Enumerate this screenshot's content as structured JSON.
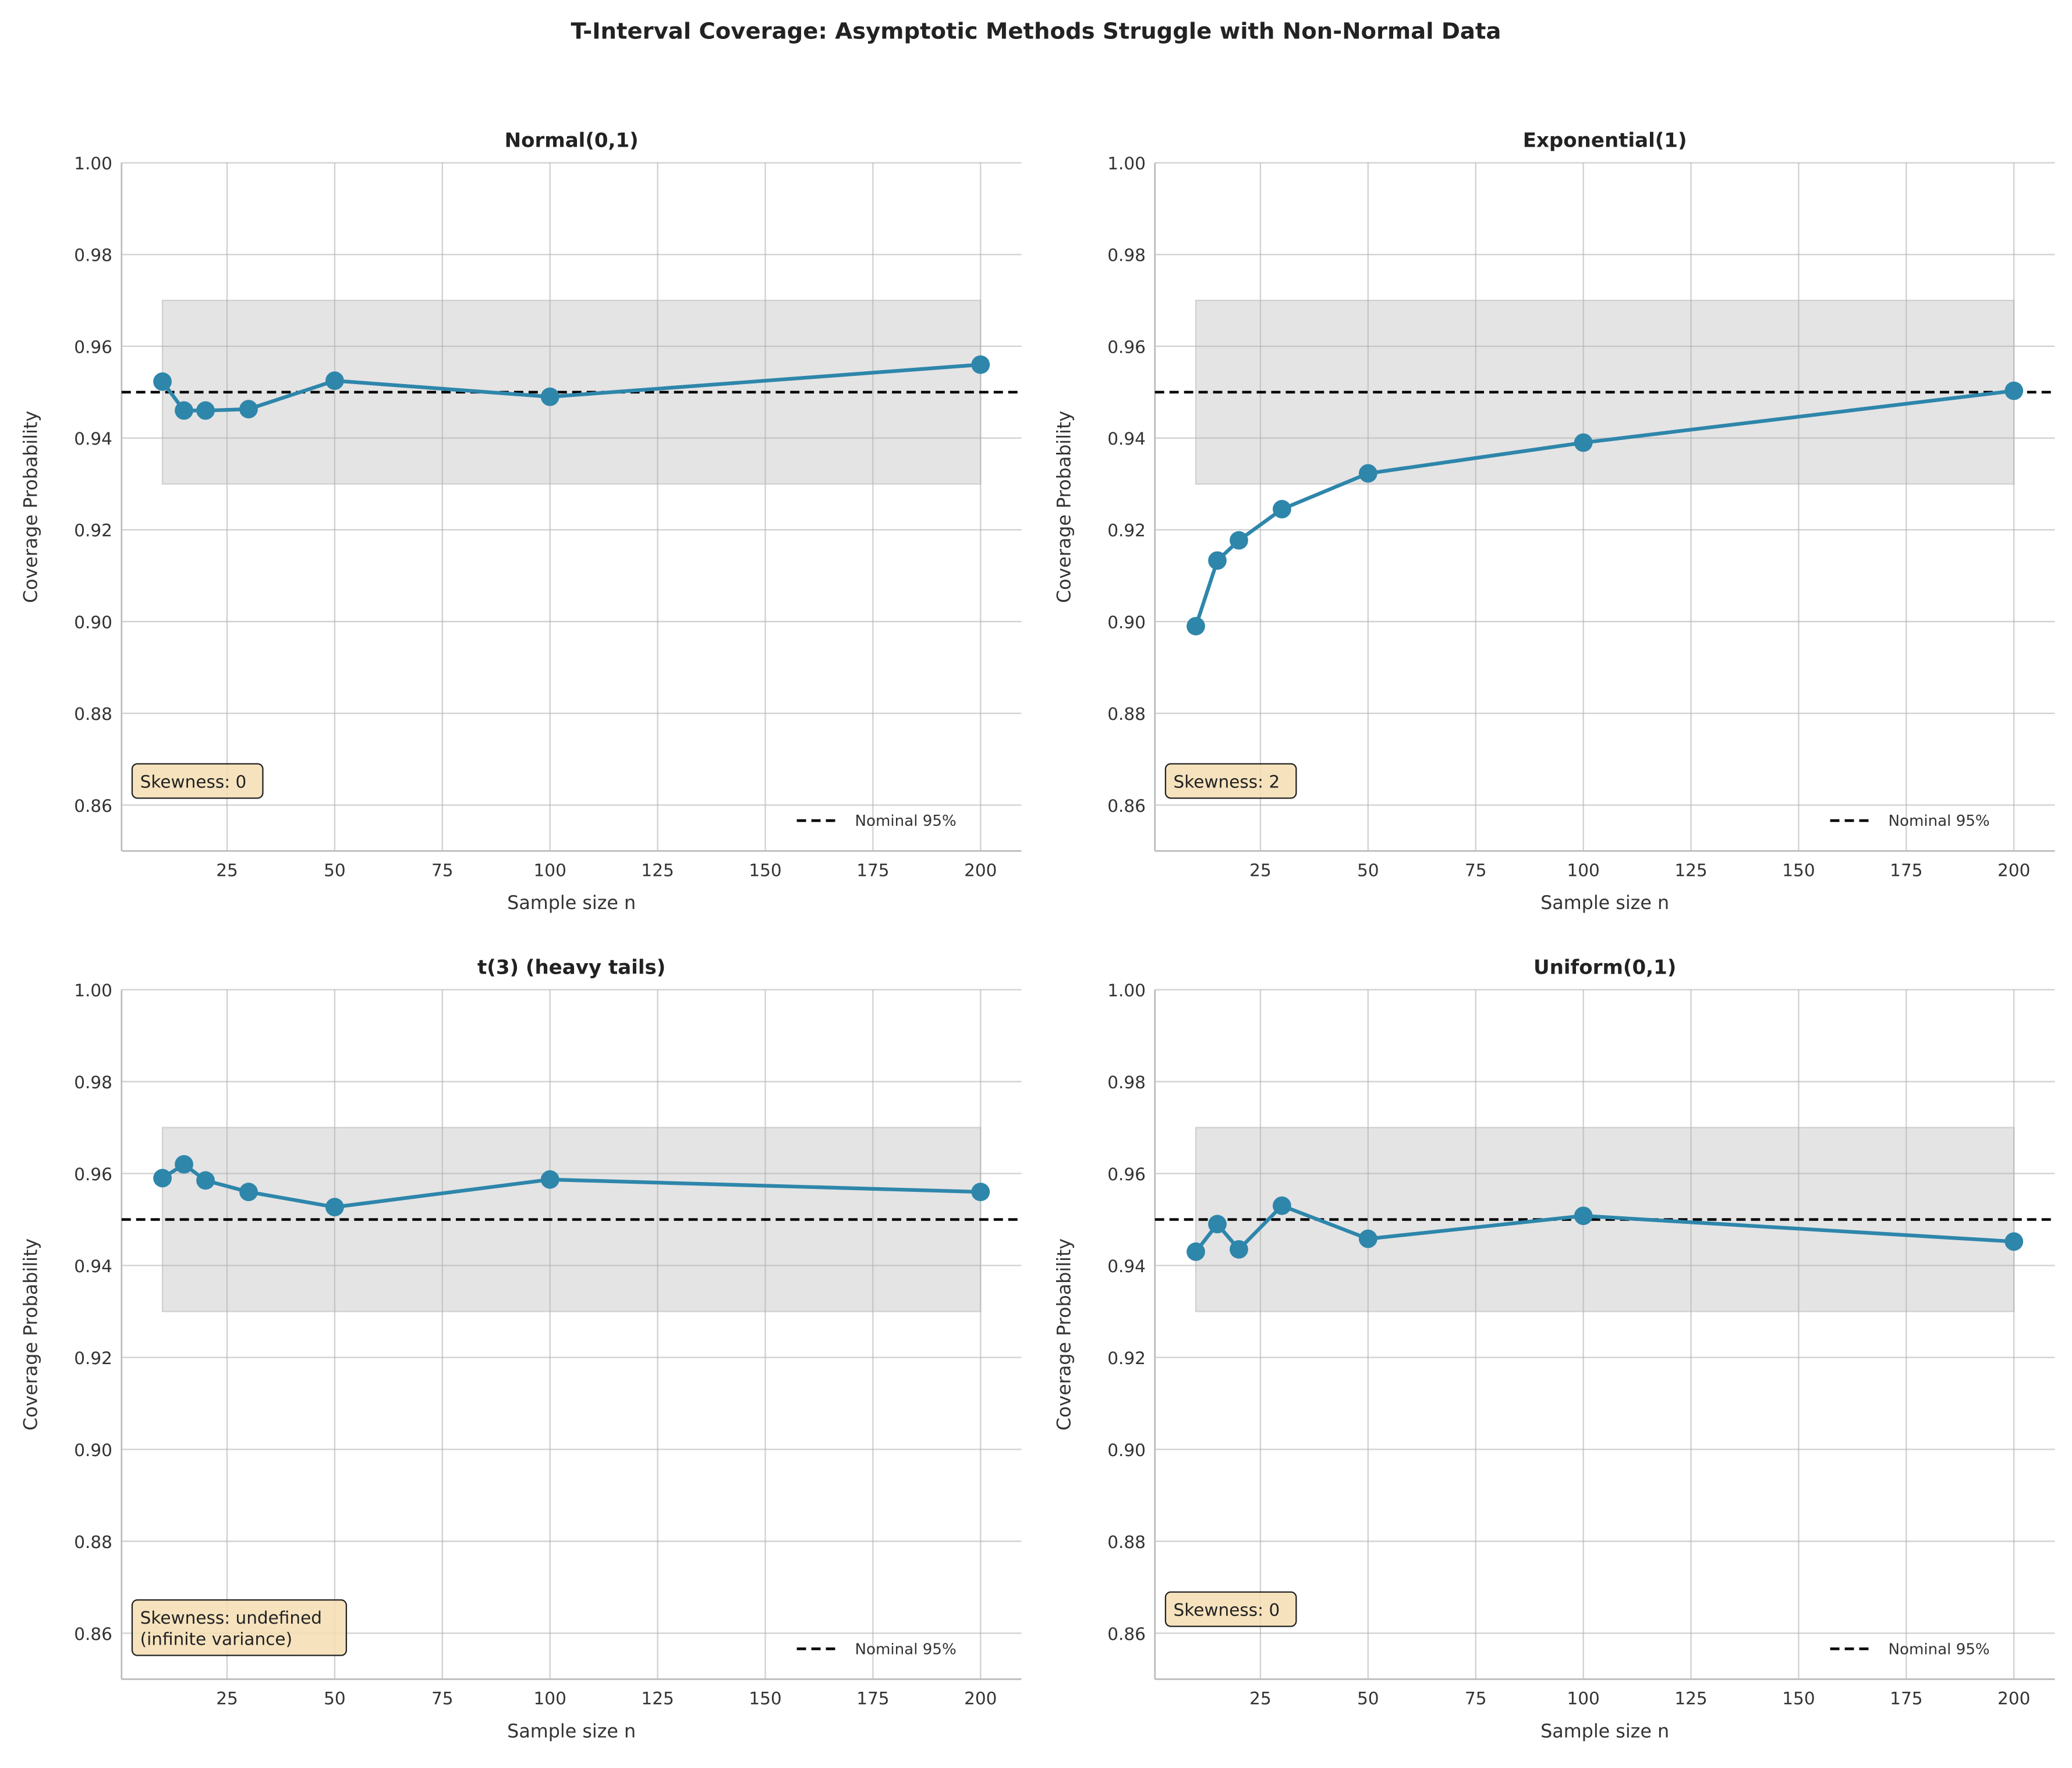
{
  "chart_data": {
    "title": "T-Interval Coverage: Asymptotic Methods Struggle with Non-Normal Data",
    "line_color": "#2e86ab",
    "band_color": "#e4e4e4",
    "panels": [
      {
        "type": "line",
        "title": "Normal(0,1)",
        "xlabel": "Sample size n",
        "ylabel": "Coverage Probability",
        "x": [
          10,
          15,
          20,
          30,
          50,
          100,
          200
        ],
        "y": [
          0.9523,
          0.946,
          0.946,
          0.9463,
          0.9525,
          0.949,
          0.956
        ],
        "note": "Skewness: 0"
      },
      {
        "type": "line",
        "title": "Exponential(1)",
        "xlabel": "Sample size n",
        "ylabel": "Coverage Probability",
        "x": [
          10,
          15,
          20,
          30,
          50,
          100,
          200
        ],
        "y": [
          0.899,
          0.9133,
          0.9177,
          0.9245,
          0.9323,
          0.939,
          0.9503
        ],
        "note": "Skewness: 2"
      },
      {
        "type": "line",
        "title": "t(3) (heavy tails)",
        "xlabel": "Sample size n",
        "ylabel": "Coverage Probability",
        "x": [
          10,
          15,
          20,
          30,
          50,
          100,
          200
        ],
        "y": [
          0.959,
          0.962,
          0.9585,
          0.956,
          0.9527,
          0.9587,
          0.956
        ],
        "note": "Skewness: undefined\n(infinite variance)"
      },
      {
        "type": "line",
        "title": "Uniform(0,1)",
        "xlabel": "Sample size n",
        "ylabel": "Coverage Probability",
        "x": [
          10,
          15,
          20,
          30,
          50,
          100,
          200
        ],
        "y": [
          0.943,
          0.949,
          0.9435,
          0.953,
          0.9458,
          0.9508,
          0.9452
        ],
        "note": "Skewness: 0"
      }
    ],
    "nominal": 0.95,
    "legend_label": "Nominal 95%",
    "legend_placement": "lower right",
    "band": [
      0.93,
      0.97
    ],
    "band_x": [
      10,
      200
    ],
    "xlim": [
      0.5,
      209.5
    ],
    "ylim": [
      0.85,
      1.0
    ],
    "xticks": [
      25,
      50,
      75,
      100,
      125,
      150,
      175,
      200
    ],
    "yticks": [
      "0.86",
      "0.88",
      "0.90",
      "0.92",
      "0.94",
      "0.96",
      "0.98",
      "1.00"
    ],
    "grid": true
  }
}
